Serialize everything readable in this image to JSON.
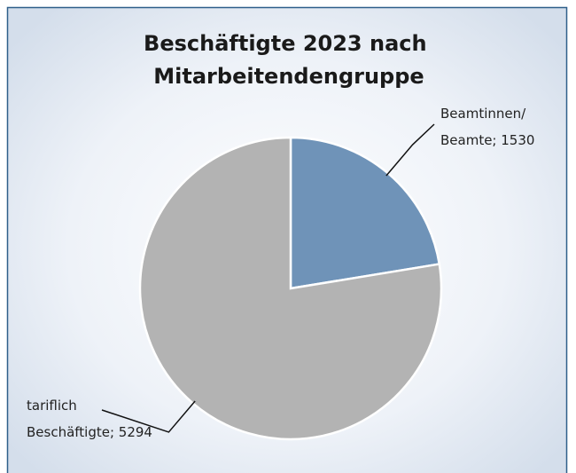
{
  "chart_data": {
    "type": "pie",
    "title": [
      "Beschäftigte 2023 nach",
      "Mitarbeitendengruppe"
    ],
    "values": [
      1530,
      5294
    ],
    "value_labels": [
      [
        "Beamtinnen/",
        "Beamte; 1530"
      ],
      [
        "tariflich",
        "Beschäftigte; 5294"
      ]
    ],
    "colors": [
      "#6f93b8",
      "#b3b3b3"
    ]
  }
}
